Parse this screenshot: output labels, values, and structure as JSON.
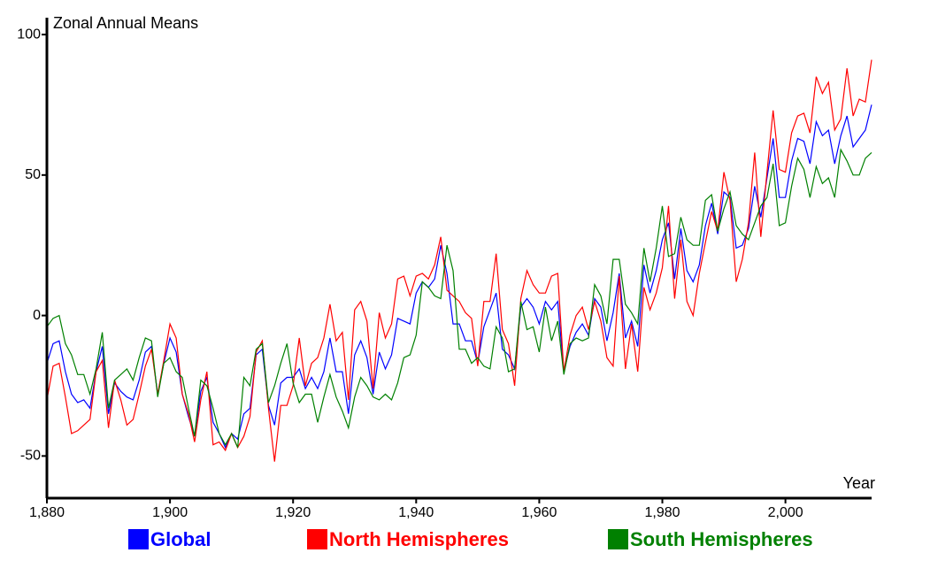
{
  "chart_data": {
    "type": "line",
    "y_label": "Zonal Annual Means",
    "x_label": "Year",
    "x": [
      1880,
      1881,
      1882,
      1883,
      1884,
      1885,
      1886,
      1887,
      1888,
      1889,
      1890,
      1891,
      1892,
      1893,
      1894,
      1895,
      1896,
      1897,
      1898,
      1899,
      1900,
      1901,
      1902,
      1903,
      1904,
      1905,
      1906,
      1907,
      1908,
      1909,
      1910,
      1911,
      1912,
      1913,
      1914,
      1915,
      1916,
      1917,
      1918,
      1919,
      1920,
      1921,
      1922,
      1923,
      1924,
      1925,
      1926,
      1927,
      1928,
      1929,
      1930,
      1931,
      1932,
      1933,
      1934,
      1935,
      1936,
      1937,
      1938,
      1939,
      1940,
      1941,
      1942,
      1943,
      1944,
      1945,
      1946,
      1947,
      1948,
      1949,
      1950,
      1951,
      1952,
      1953,
      1954,
      1955,
      1956,
      1957,
      1958,
      1959,
      1960,
      1961,
      1962,
      1963,
      1964,
      1965,
      1966,
      1967,
      1968,
      1969,
      1970,
      1971,
      1972,
      1973,
      1974,
      1975,
      1976,
      1977,
      1978,
      1979,
      1980,
      1981,
      1982,
      1983,
      1984,
      1985,
      1986,
      1987,
      1988,
      1989,
      1990,
      1991,
      1992,
      1993,
      1994,
      1995,
      1996,
      1997,
      1998,
      1999,
      2000,
      2001,
      2002,
      2003,
      2004,
      2005,
      2006,
      2007,
      2008,
      2009,
      2010,
      2011,
      2012,
      2013,
      2014
    ],
    "series": [
      {
        "name": "Global",
        "color": "#0000ff",
        "values": [
          -17,
          -10,
          -9,
          -20,
          -28,
          -31,
          -30,
          -33,
          -20,
          -11,
          -35,
          -24,
          -27,
          -29,
          -30,
          -23,
          -13,
          -11,
          -28,
          -17,
          -8,
          -13,
          -28,
          -36,
          -43,
          -27,
          -22,
          -38,
          -42,
          -47,
          -42,
          -44,
          -35,
          -33,
          -14,
          -12,
          -32,
          -39,
          -24,
          -22,
          -22,
          -19,
          -26,
          -22,
          -26,
          -20,
          -8,
          -20,
          -20,
          -35,
          -14,
          -9,
          -15,
          -28,
          -13,
          -19,
          -14,
          -1,
          -2,
          -3,
          8,
          12,
          10,
          13,
          25,
          15,
          -3,
          -3,
          -9,
          -9,
          -17,
          -4,
          2,
          8,
          -12,
          -14,
          -19,
          3,
          6,
          3,
          -3,
          5,
          2,
          5,
          -20,
          -11,
          -6,
          -3,
          -7,
          6,
          3,
          -9,
          1,
          15,
          -8,
          -2,
          -11,
          18,
          8,
          16,
          27,
          33,
          13,
          31,
          16,
          12,
          18,
          32,
          40,
          29,
          44,
          42,
          24,
          25,
          31,
          46,
          35,
          49,
          63,
          42,
          42,
          55,
          63,
          62,
          54,
          69,
          64,
          66,
          54,
          64,
          71,
          60,
          63,
          66,
          75
        ]
      },
      {
        "name": "North Hemispheres",
        "color": "#ff0000",
        "values": [
          -30,
          -18,
          -17,
          -29,
          -42,
          -41,
          -39,
          -37,
          -20,
          -16,
          -40,
          -23,
          -30,
          -39,
          -37,
          -28,
          -18,
          -12,
          -28,
          -16,
          -3,
          -8,
          -28,
          -35,
          -45,
          -30,
          -20,
          -46,
          -45,
          -48,
          -42,
          -47,
          -43,
          -36,
          -13,
          -9,
          -33,
          -52,
          -32,
          -32,
          -25,
          -8,
          -25,
          -17,
          -15,
          -8,
          4,
          -9,
          -6,
          -30,
          2,
          5,
          -2,
          -26,
          1,
          -8,
          -3,
          13,
          14,
          7,
          14,
          15,
          13,
          18,
          28,
          9,
          7,
          5,
          1,
          -1,
          -18,
          5,
          5,
          22,
          -5,
          -10,
          -25,
          6,
          16,
          11,
          8,
          8,
          14,
          15,
          -20,
          -7,
          0,
          3,
          -5,
          5,
          -2,
          -15,
          -18,
          14,
          -19,
          -3,
          -20,
          10,
          2,
          8,
          17,
          39,
          6,
          27,
          5,
          0,
          15,
          26,
          37,
          30,
          51,
          41,
          12,
          20,
          33,
          58,
          28,
          51,
          73,
          52,
          51,
          65,
          71,
          72,
          65,
          85,
          79,
          83,
          66,
          70,
          88,
          71,
          77,
          76,
          91
        ]
      },
      {
        "name": "South Hemispheres",
        "color": "#008000",
        "values": [
          -4,
          -1,
          0,
          -10,
          -14,
          -21,
          -21,
          -28,
          -19,
          -6,
          -33,
          -23,
          -21,
          -19,
          -23,
          -15,
          -8,
          -9,
          -29,
          -17,
          -15,
          -20,
          -22,
          -33,
          -43,
          -23,
          -25,
          -33,
          -42,
          -46,
          -42,
          -47,
          -22,
          -25,
          -12,
          -10,
          -31,
          -25,
          -17,
          -10,
          -24,
          -31,
          -28,
          -28,
          -38,
          -29,
          -21,
          -29,
          -34,
          -40,
          -29,
          -22,
          -25,
          -29,
          -30,
          -28,
          -30,
          -24,
          -15,
          -14,
          -7,
          12,
          10,
          7,
          6,
          25,
          16,
          -12,
          -12,
          -17,
          -15,
          -18,
          -19,
          -4,
          -8,
          -20,
          -19,
          5,
          -5,
          -4,
          -13,
          3,
          -9,
          -2,
          -21,
          -10,
          -8,
          -9,
          -8,
          11,
          7,
          -3,
          20,
          20,
          4,
          1,
          -3,
          24,
          12,
          24,
          39,
          21,
          22,
          35,
          27,
          25,
          25,
          41,
          43,
          30,
          38,
          44,
          32,
          29,
          27,
          33,
          39,
          42,
          54,
          32,
          33,
          46,
          56,
          52,
          42,
          53,
          47,
          49,
          42,
          59,
          55,
          50,
          50,
          56,
          58
        ]
      }
    ],
    "xlim": [
      1880,
      2014
    ],
    "ylim": [
      -65,
      106
    ],
    "xticks": [
      {
        "value": 1880,
        "label": "1,880"
      },
      {
        "value": 1900,
        "label": "1,900"
      },
      {
        "value": 1920,
        "label": "1,920"
      },
      {
        "value": 1940,
        "label": "1,940"
      },
      {
        "value": 1960,
        "label": "1,960"
      },
      {
        "value": 1980,
        "label": "1,980"
      },
      {
        "value": 2000,
        "label": "2,000"
      }
    ],
    "yticks": [
      -50,
      0,
      50,
      100
    ],
    "grid": false,
    "legend": "bottom"
  }
}
